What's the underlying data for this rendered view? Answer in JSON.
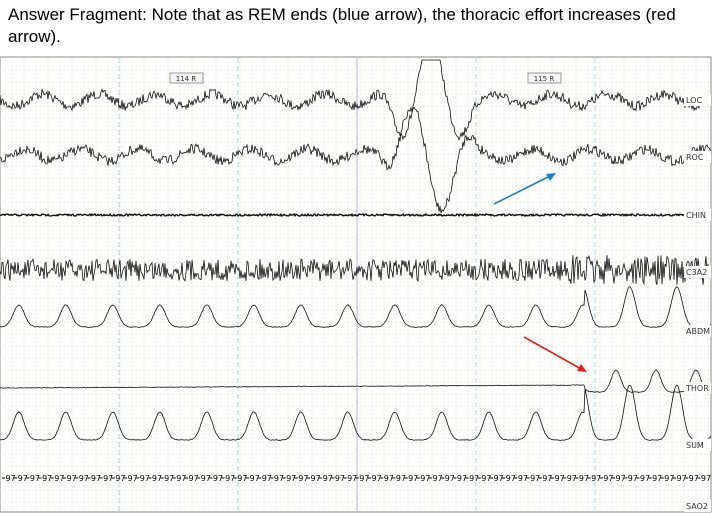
{
  "caption": "Answer Fragment: Note that as REM ends (blue arrow), the thoracic effort increases (red arrow).",
  "epochs": [
    "114 R",
    "115 R"
  ],
  "channels": [
    "LOC",
    "ROC",
    "CHIN",
    "C3A2",
    "ABDM",
    "THOR",
    "SUM",
    "SAO2"
  ],
  "sao2_row": [
    97,
    97,
    97,
    97,
    97,
    97,
    97,
    97,
    97,
    97,
    97,
    97,
    97,
    97,
    97,
    97,
    97,
    97,
    97,
    97,
    97,
    97,
    97,
    97,
    97,
    97,
    97,
    97,
    97,
    97,
    97,
    97,
    97,
    97,
    97,
    97,
    97,
    97,
    97,
    97,
    97,
    97,
    97,
    97,
    97,
    97,
    97,
    97,
    97,
    97,
    97,
    97,
    97,
    97,
    97,
    97,
    97,
    97
  ]
}
